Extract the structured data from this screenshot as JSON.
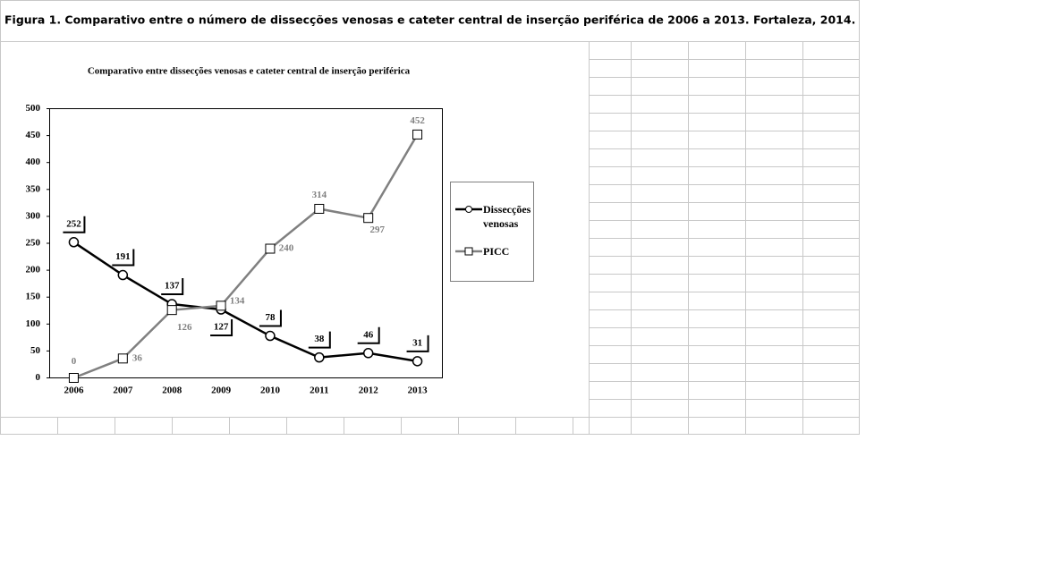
{
  "figure_caption": "Figura 1. Comparativo entre o número de dissecções venosas e cateter central de inserção periférica de 2006 a 2013. Fortaleza, 2014.",
  "chart_data": {
    "type": "line",
    "title": "Comparativo entre dissecções venosas e cateter central de inserção periférica",
    "categories": [
      "2006",
      "2007",
      "2008",
      "2009",
      "2010",
      "2011",
      "2012",
      "2013"
    ],
    "series": [
      {
        "name": "Dissecções venosas",
        "color": "#000000",
        "marker": "circle",
        "values": [
          252,
          191,
          137,
          127,
          78,
          38,
          46,
          31
        ]
      },
      {
        "name": "PICC",
        "color": "#808080",
        "marker": "square",
        "values": [
          0,
          36,
          126,
          134,
          240,
          314,
          297,
          452
        ]
      }
    ],
    "ylim": [
      0,
      500
    ],
    "yticks": [
      0,
      50,
      100,
      150,
      200,
      250,
      300,
      350,
      400,
      450,
      500
    ],
    "grid": false
  }
}
